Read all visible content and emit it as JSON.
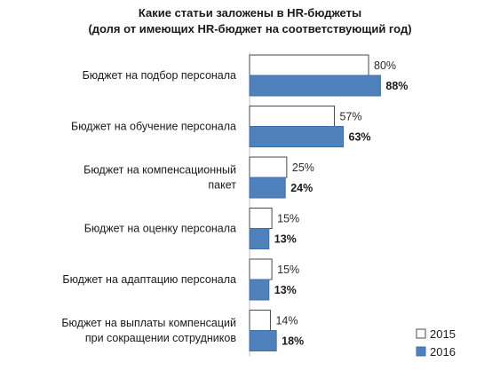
{
  "chart_data": {
    "type": "bar",
    "orientation": "horizontal",
    "title": "Какие статьи заложены в HR-бюджеты",
    "subtitle": "(доля от имеющих HR-бюджет на соответствующий год)",
    "categories": [
      "Бюджет на подбор персонала",
      "Бюджет на обучение персонала",
      "Бюджет на компенсационный пакет",
      "Бюджет на оценку персонала",
      "Бюджет на адаптацию персонала",
      "Бюджет на выплаты компенсаций при сокращении сотрудников"
    ],
    "category_lines": [
      [
        "Бюджет на подбор персонала"
      ],
      [
        "Бюджет на обучение персонала"
      ],
      [
        "Бюджет на компенсационный",
        "пакет"
      ],
      [
        "Бюджет на оценку персонала"
      ],
      [
        "Бюджет на адаптацию персонала"
      ],
      [
        "Бюджет на выплаты компенсаций",
        "при сокращении сотрудников"
      ]
    ],
    "series": [
      {
        "name": "2015",
        "color": "#ffffff",
        "values": [
          80,
          57,
          25,
          15,
          15,
          14
        ],
        "labels": [
          "80%",
          "57%",
          "25%",
          "15%",
          "15%",
          "14%"
        ]
      },
      {
        "name": "2016",
        "color": "#4f81bd",
        "values": [
          88,
          63,
          24,
          13,
          13,
          18
        ],
        "labels": [
          "88%",
          "63%",
          "24%",
          "13%",
          "13%",
          "18%"
        ]
      }
    ],
    "xlim": [
      0,
      100
    ],
    "grid": false,
    "legend": "bottom-right"
  }
}
